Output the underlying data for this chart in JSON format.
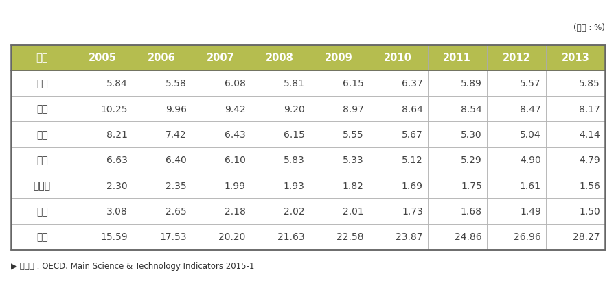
{
  "title_unit": "(단위 : %)",
  "columns": [
    "구분",
    "2005",
    "2006",
    "2007",
    "2008",
    "2009",
    "2010",
    "2011",
    "2012",
    "2013"
  ],
  "rows": [
    [
      "한국",
      "5.84",
      "5.58",
      "6.08",
      "5.81",
      "6.15",
      "6.37",
      "5.89",
      "5.57",
      "5.85"
    ],
    [
      "미국",
      "10.25",
      "9.96",
      "9.42",
      "9.20",
      "8.97",
      "8.64",
      "8.54",
      "8.47",
      "8.17"
    ],
    [
      "일본",
      "8.21",
      "7.42",
      "6.43",
      "6.15",
      "5.55",
      "5.67",
      "5.30",
      "5.04",
      "4.14"
    ],
    [
      "독일",
      "6.63",
      "6.40",
      "6.10",
      "5.83",
      "5.33",
      "5.12",
      "5.29",
      "4.90",
      "4.79"
    ],
    [
      "프랑스",
      "2.30",
      "2.35",
      "1.99",
      "1.93",
      "1.82",
      "1.69",
      "1.75",
      "1.61",
      "1.56"
    ],
    [
      "영국",
      "3.08",
      "2.65",
      "2.18",
      "2.02",
      "2.01",
      "1.73",
      "1.68",
      "1.49",
      "1.50"
    ],
    [
      "중국",
      "15.59",
      "17.53",
      "20.20",
      "21.63",
      "22.58",
      "23.87",
      "24.86",
      "26.96",
      "28.27"
    ]
  ],
  "header_bg_color": "#b5bd4f",
  "header_text_color": "#ffffff",
  "cell_bg_color": "#ffffff",
  "outer_border_color": "#666666",
  "inner_border_color": "#aaaaaa",
  "header_border_color": "#888888",
  "text_color": "#333333",
  "data_text_color": "#444444",
  "source_text": "▶ 자료원 : OECD, Main Science & Technology Indicators 2015-1",
  "title_unit_color": "#333333",
  "figsize": [
    8.97,
    4.27
  ],
  "dpi": 100,
  "header_fontsize": 10.5,
  "cell_fontsize": 10,
  "source_fontsize": 8.5,
  "unit_fontsize": 8.5
}
